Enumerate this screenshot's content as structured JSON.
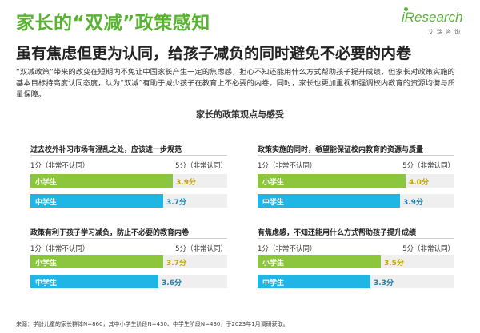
{
  "header": {
    "title": "家长的“双减”政策感知",
    "subtitle": "虽有焦虑但更为认同，给孩子减负的同时避免不必要的内卷"
  },
  "logo": {
    "word": "iResearch",
    "sub": "艾瑞咨询"
  },
  "intro": "“双减政策”带来的改变在短期内不免让中国家长产生一定的焦虑感，担心不知还能用什么方式帮助孩子提升成绩，但家长对政策实施的基本目标持高度认同态度，认为“双减”有助于减少孩子在教育上不必要的内卷。同时，家长也更加重视和强调校内教育的资源均衡与质量保障。",
  "section_title": "家长的政策观点与感受",
  "colors": {
    "title_green": "#58b331",
    "primary_series": "#8cc63e",
    "secondary_series": "#1fb6e5",
    "track": "#efefef"
  },
  "chart_data": {
    "type": "bar",
    "scale_min_label": "1分（非常不认同）",
    "scale_max_label": "5分（非常认同）",
    "xlim": [
      1,
      5
    ],
    "panels": [
      {
        "title": "过去校外补习市场有混乱之处，应该进一步规范",
        "bars": [
          {
            "name": "小学生",
            "value": 3.9,
            "value_label": "3.9分"
          },
          {
            "name": "中学生",
            "value": 3.7,
            "value_label": "3.7分"
          }
        ]
      },
      {
        "title": "政策实施的同时，希望能保证校内教育的资源与质量",
        "bars": [
          {
            "name": "小学生",
            "value": 4.0,
            "value_label": "4.0分"
          },
          {
            "name": "中学生",
            "value": 3.9,
            "value_label": "3.9分"
          }
        ]
      },
      {
        "title": "政策有利于孩子学习减负，防止不必要的教育内卷",
        "bars": [
          {
            "name": "小学生",
            "value": 3.7,
            "value_label": "3.7分"
          },
          {
            "name": "中学生",
            "value": 3.6,
            "value_label": "3.6分"
          }
        ]
      },
      {
        "title": "有焦虑感，不知还能用什么方式帮助孩子提升成绩",
        "bars": [
          {
            "name": "小学生",
            "value": 3.5,
            "value_label": "3.5分"
          },
          {
            "name": "中学生",
            "value": 3.3,
            "value_label": "3.3分"
          }
        ]
      }
    ]
  },
  "footer": "来源：学龄儿童的家长群体N=860，其中小学生阶段N=430、中学生阶段N=430，于2023年1月调研获取。"
}
